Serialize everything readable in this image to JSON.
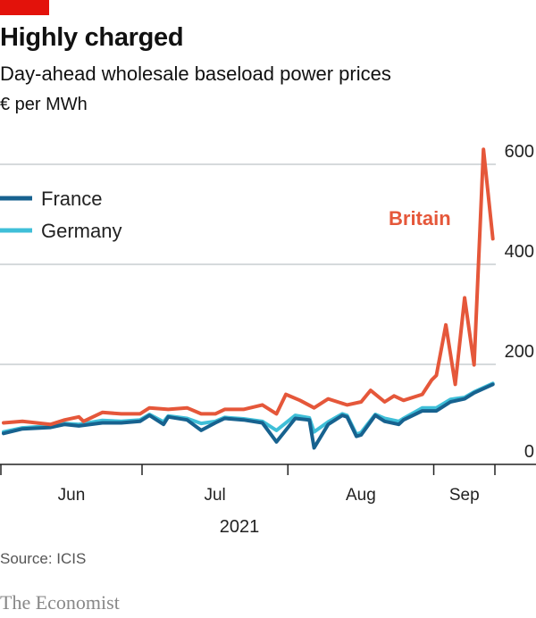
{
  "header": {
    "title": "Highly charged",
    "subtitle": "Day-ahead wholesale baseload power prices",
    "unit": "€ per MWh"
  },
  "footer": {
    "source": "Source: ICIS",
    "brand": "The Economist"
  },
  "colors": {
    "brand_red": "#E3120B",
    "Britain": "#E5573A",
    "France": "#17628F",
    "Germany": "#3FBFD8",
    "grid": "#c9cdd0"
  },
  "chart_data": {
    "type": "line",
    "title": "Highly charged",
    "subtitle": "Day-ahead wholesale baseload power prices",
    "ylabel": "€ per MWh",
    "xlabel": "2021",
    "ylim": [
      0,
      600
    ],
    "yticks": [
      "0",
      "200",
      "400",
      "600"
    ],
    "xticks": [
      "Jun",
      "Jul",
      "Aug",
      "Sep"
    ],
    "xrange": [
      "2021-06-01",
      "2021-09-14"
    ],
    "grid": true,
    "legend": "top-left",
    "series": [
      {
        "name": "Britain",
        "label_on_chart": true,
        "points": [
          [
            "2021-06-01",
            83
          ],
          [
            "2021-06-05",
            86
          ],
          [
            "2021-06-11",
            80
          ],
          [
            "2021-06-14",
            89
          ],
          [
            "2021-06-17",
            95
          ],
          [
            "2021-06-18",
            86
          ],
          [
            "2021-06-22",
            104
          ],
          [
            "2021-06-26",
            101
          ],
          [
            "2021-06-30",
            101
          ],
          [
            "2021-07-02",
            113
          ],
          [
            "2021-07-06",
            110
          ],
          [
            "2021-07-10",
            113
          ],
          [
            "2021-07-13",
            101
          ],
          [
            "2021-07-16",
            101
          ],
          [
            "2021-07-18",
            110
          ],
          [
            "2021-07-22",
            110
          ],
          [
            "2021-07-26",
            119
          ],
          [
            "2021-07-29",
            101
          ],
          [
            "2021-07-31",
            140
          ],
          [
            "2021-08-03",
            128
          ],
          [
            "2021-08-06",
            113
          ],
          [
            "2021-08-09",
            131
          ],
          [
            "2021-08-13",
            119
          ],
          [
            "2021-08-16",
            125
          ],
          [
            "2021-08-18",
            148
          ],
          [
            "2021-08-21",
            125
          ],
          [
            "2021-08-23",
            137
          ],
          [
            "2021-08-25",
            128
          ],
          [
            "2021-08-29",
            140
          ],
          [
            "2021-08-31",
            169
          ],
          [
            "2021-09-01",
            178
          ],
          [
            "2021-09-03",
            279
          ],
          [
            "2021-09-05",
            160
          ],
          [
            "2021-09-07",
            333
          ],
          [
            "2021-09-09",
            199
          ],
          [
            "2021-09-11",
            630
          ],
          [
            "2021-09-13",
            451
          ]
        ]
      },
      {
        "name": "France",
        "points": [
          [
            "2021-06-01",
            62
          ],
          [
            "2021-06-05",
            71
          ],
          [
            "2021-06-11",
            74
          ],
          [
            "2021-06-14",
            80
          ],
          [
            "2021-06-17",
            77
          ],
          [
            "2021-06-22",
            83
          ],
          [
            "2021-06-26",
            83
          ],
          [
            "2021-06-30",
            86
          ],
          [
            "2021-07-02",
            98
          ],
          [
            "2021-07-05",
            80
          ],
          [
            "2021-07-06",
            95
          ],
          [
            "2021-07-10",
            89
          ],
          [
            "2021-07-13",
            68
          ],
          [
            "2021-07-16",
            83
          ],
          [
            "2021-07-18",
            92
          ],
          [
            "2021-07-22",
            89
          ],
          [
            "2021-07-26",
            83
          ],
          [
            "2021-07-29",
            45
          ],
          [
            "2021-08-02",
            92
          ],
          [
            "2021-08-05",
            89
          ],
          [
            "2021-08-06",
            33
          ],
          [
            "2021-08-09",
            80
          ],
          [
            "2021-08-12",
            98
          ],
          [
            "2021-08-13",
            95
          ],
          [
            "2021-08-15",
            56
          ],
          [
            "2021-08-16",
            59
          ],
          [
            "2021-08-19",
            98
          ],
          [
            "2021-08-21",
            86
          ],
          [
            "2021-08-24",
            80
          ],
          [
            "2021-08-25",
            89
          ],
          [
            "2021-08-29",
            107
          ],
          [
            "2021-09-01",
            107
          ],
          [
            "2021-09-04",
            125
          ],
          [
            "2021-09-07",
            131
          ],
          [
            "2021-09-09",
            143
          ],
          [
            "2021-09-13",
            160
          ]
        ]
      },
      {
        "name": "Germany",
        "points": [
          [
            "2021-06-01",
            65
          ],
          [
            "2021-06-05",
            73
          ],
          [
            "2021-06-11",
            77
          ],
          [
            "2021-06-14",
            82
          ],
          [
            "2021-06-17",
            80
          ],
          [
            "2021-06-22",
            88
          ],
          [
            "2021-06-26",
            86
          ],
          [
            "2021-06-30",
            89
          ],
          [
            "2021-07-02",
            100
          ],
          [
            "2021-07-05",
            85
          ],
          [
            "2021-07-06",
            97
          ],
          [
            "2021-07-10",
            92
          ],
          [
            "2021-07-13",
            82
          ],
          [
            "2021-07-16",
            86
          ],
          [
            "2021-07-18",
            94
          ],
          [
            "2021-07-22",
            91
          ],
          [
            "2021-07-26",
            86
          ],
          [
            "2021-07-29",
            68
          ],
          [
            "2021-08-02",
            98
          ],
          [
            "2021-08-05",
            93
          ],
          [
            "2021-08-06",
            65
          ],
          [
            "2021-08-09",
            85
          ],
          [
            "2021-08-12",
            101
          ],
          [
            "2021-08-13",
            98
          ],
          [
            "2021-08-15",
            60
          ],
          [
            "2021-08-16",
            64
          ],
          [
            "2021-08-19",
            100
          ],
          [
            "2021-08-21",
            92
          ],
          [
            "2021-08-24",
            86
          ],
          [
            "2021-08-25",
            92
          ],
          [
            "2021-08-29",
            113
          ],
          [
            "2021-09-01",
            113
          ],
          [
            "2021-09-04",
            130
          ],
          [
            "2021-09-07",
            134
          ],
          [
            "2021-09-09",
            145
          ],
          [
            "2021-09-13",
            162
          ]
        ]
      }
    ]
  }
}
